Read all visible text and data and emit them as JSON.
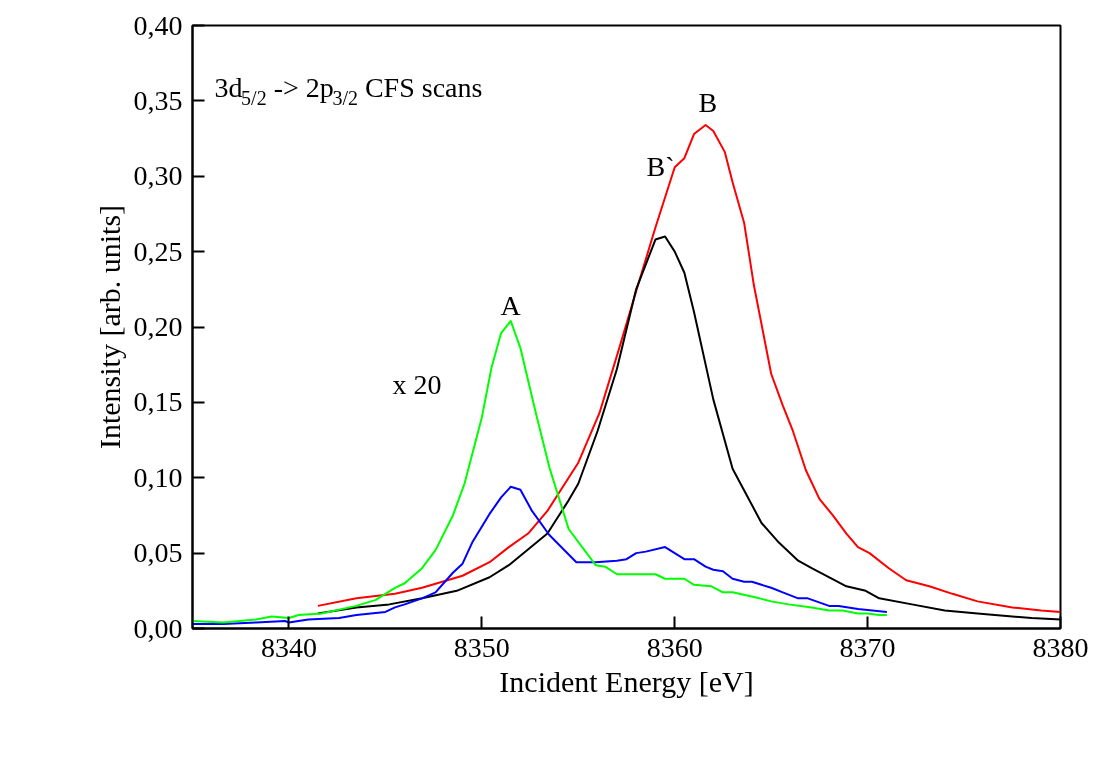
{
  "chart_data": {
    "type": "line",
    "xlabel": "Incident Energy [eV]",
    "ylabel": "Intensity [arb. units]",
    "xlim": [
      8335,
      8380
    ],
    "ylim": [
      0,
      0.4
    ],
    "xticks": [
      8340,
      8350,
      8360,
      8370,
      8380
    ],
    "yticks": [
      {
        "value": 0,
        "label": "0,00"
      },
      {
        "value": 0.05,
        "label": "0,05"
      },
      {
        "value": 0.1,
        "label": "0,10"
      },
      {
        "value": 0.15,
        "label": "0,15"
      },
      {
        "value": 0.2,
        "label": "0,20"
      },
      {
        "value": 0.25,
        "label": "0,25"
      },
      {
        "value": 0.3,
        "label": "0,30"
      },
      {
        "value": 0.35,
        "label": "0,35"
      },
      {
        "value": 0.4,
        "label": "0,40"
      }
    ],
    "grid": false,
    "marker": "none",
    "line_style": "solid",
    "annotations": [
      "3d$_{5/2}$ -> 2p$_{3/2}$ CFS scans",
      "A",
      "x 20",
      "B`",
      "B"
    ],
    "series": [
      {
        "color": "#ff0000",
        "x": [
          8341.5,
          8343.5,
          8345.5,
          8346.9,
          8349,
          8350.4,
          8351.4,
          8352.4,
          8353.4,
          8354.5,
          8355,
          8356.1,
          8357.1,
          8358.1,
          8359,
          8360,
          8360.5,
          8361,
          8361.6,
          8362,
          8362.6,
          8363,
          8363.6,
          8364.1,
          8365,
          8365.6,
          8366.1,
          8366.8,
          8367.5,
          8368.2,
          8368.9,
          8369.5,
          8370.1,
          8371.1,
          8372,
          8373.2,
          8374.4,
          8375.7,
          8377.5,
          8379,
          8380
        ],
        "values": [
          0.015,
          0.02,
          0.023,
          0.027,
          0.035,
          0.044,
          0.054,
          0.063,
          0.078,
          0.1,
          0.11,
          0.143,
          0.185,
          0.228,
          0.266,
          0.306,
          0.312,
          0.328,
          0.334,
          0.33,
          0.316,
          0.296,
          0.269,
          0.228,
          0.169,
          0.148,
          0.132,
          0.105,
          0.086,
          0.075,
          0.063,
          0.054,
          0.05,
          0.04,
          0.032,
          0.028,
          0.023,
          0.018,
          0.014,
          0.012,
          0.011
        ]
      },
      {
        "color": "#000000",
        "x": [
          8341.5,
          8343.5,
          8345.2,
          8346.9,
          8348.7,
          8350.4,
          8351.4,
          8353.4,
          8354.5,
          8355,
          8356,
          8357,
          8358,
          8359,
          8359.5,
          8360,
          8360.5,
          8361,
          8362,
          8363,
          8364.5,
          8365.4,
          8366.4,
          8367.1,
          8368.9,
          8369.9,
          8370.6,
          8372.3,
          8374,
          8375.7,
          8377.5,
          8378.5,
          8380
        ],
        "values": [
          0.01,
          0.014,
          0.016,
          0.02,
          0.025,
          0.034,
          0.042,
          0.063,
          0.085,
          0.096,
          0.131,
          0.172,
          0.225,
          0.258,
          0.26,
          0.25,
          0.236,
          0.21,
          0.152,
          0.106,
          0.07,
          0.057,
          0.045,
          0.04,
          0.028,
          0.025,
          0.02,
          0.016,
          0.012,
          0.01,
          0.008,
          0.007,
          0.006
        ]
      },
      {
        "color": "#0000ff",
        "x": [
          8335,
          8336.6,
          8338.3,
          8339.8,
          8340,
          8341,
          8342.6,
          8343.5,
          8345,
          8345.5,
          8346,
          8346.9,
          8347.6,
          8348.5,
          8349,
          8349.5,
          8350.4,
          8351,
          8351.5,
          8352,
          8352.6,
          8353.5,
          8354.9,
          8355.9,
          8357,
          8357.5,
          8358,
          8358.5,
          8359.5,
          8360,
          8360.5,
          8361,
          8361.6,
          8362,
          8362.5,
          8363,
          8363.6,
          8364,
          8364.5,
          8365,
          8365.6,
          8366.4,
          8366.9,
          8368,
          8368.5,
          8369.5,
          8371
        ],
        "values": [
          0.003,
          0.003,
          0.004,
          0.005,
          0.004,
          0.006,
          0.007,
          0.009,
          0.011,
          0.014,
          0.016,
          0.02,
          0.024,
          0.037,
          0.043,
          0.057,
          0.076,
          0.087,
          0.094,
          0.092,
          0.078,
          0.062,
          0.044,
          0.044,
          0.045,
          0.046,
          0.05,
          0.051,
          0.054,
          0.05,
          0.046,
          0.046,
          0.041,
          0.039,
          0.038,
          0.033,
          0.031,
          0.031,
          0.029,
          0.027,
          0.024,
          0.02,
          0.02,
          0.015,
          0.015,
          0.013,
          0.011
        ]
      },
      {
        "color": "#00ff00",
        "x": [
          8335,
          8336.6,
          8338.3,
          8339.1,
          8340,
          8340.5,
          8341.7,
          8343.5,
          8344.5,
          8345.5,
          8346,
          8346.9,
          8347.6,
          8348.5,
          8349.1,
          8350,
          8350.5,
          8351,
          8351.5,
          8352,
          8352.8,
          8353.5,
          8354.5,
          8355.9,
          8356.4,
          8357,
          8359,
          8359.5,
          8360.5,
          8361,
          8361.9,
          8362.5,
          8363,
          8364.4,
          8365,
          8365.9,
          8367.1,
          8368,
          8368.7,
          8369.5,
          8370,
          8370.6,
          8371
        ],
        "values": [
          0.005,
          0.004,
          0.006,
          0.008,
          0.007,
          0.009,
          0.01,
          0.015,
          0.019,
          0.027,
          0.03,
          0.04,
          0.052,
          0.075,
          0.096,
          0.14,
          0.173,
          0.196,
          0.204,
          0.186,
          0.143,
          0.107,
          0.066,
          0.042,
          0.041,
          0.036,
          0.036,
          0.033,
          0.033,
          0.029,
          0.028,
          0.024,
          0.024,
          0.02,
          0.018,
          0.016,
          0.014,
          0.012,
          0.012,
          0.01,
          0.01,
          0.009,
          0.009
        ]
      }
    ]
  }
}
